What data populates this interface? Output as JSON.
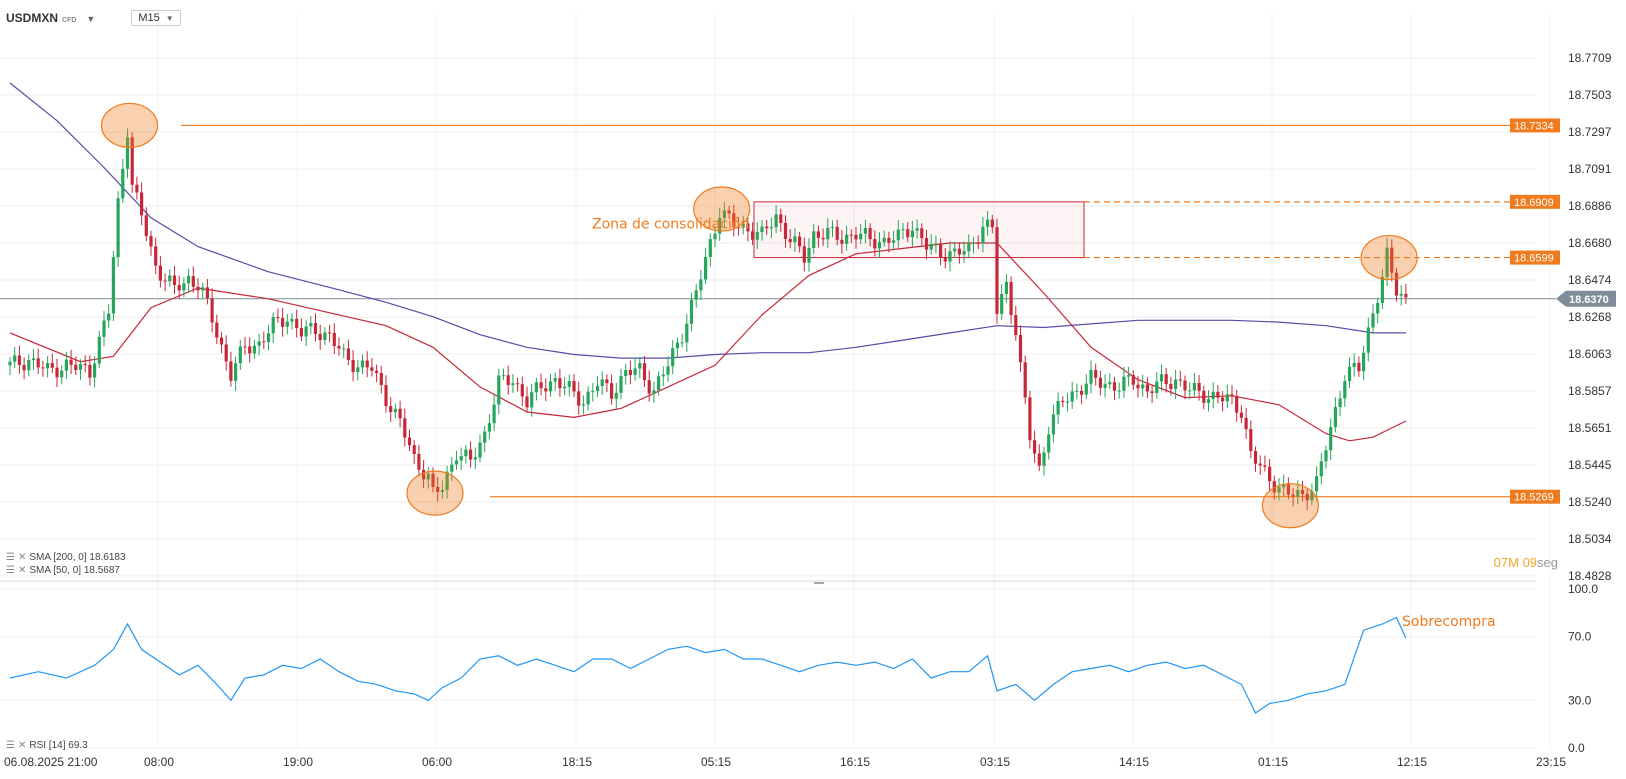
{
  "toolbar": {
    "symbol": "USDMXN",
    "instrument_type": "CFD",
    "timeframe": "M15"
  },
  "indicators": {
    "sma200_label": "SMA [200, 0] 18.6183",
    "sma50_label": "SMA [50, 0] 18.5687",
    "rsi_label": "RSI [14] 69.3"
  },
  "countdown": {
    "minutes": "07",
    "minutes_unit": "M",
    "seconds": "09",
    "seconds_unit": "seg"
  },
  "colors": {
    "bull": "#26a65b",
    "bear": "#c62839",
    "sma50": "#c62839",
    "sma200": "#5a4aa8",
    "rsi": "#2196f3",
    "annotation": "#f07b1e",
    "consolidation": "#c62839",
    "current_price_tag": "#7f8c9a",
    "countdown_min": "#f5a623",
    "countdown_sec": "#999999"
  },
  "annotations": {
    "consolidation_label": "Zona de consolidación",
    "overbought_label": "Sobrecompra"
  },
  "chart_data": {
    "type": "candlestick",
    "symbol": "USDMXN",
    "timeframe": "M15",
    "price_axis": {
      "ticks": [
        "18.7709",
        "18.7503",
        "18.7297",
        "18.7091",
        "18.6886",
        "18.6680",
        "18.6474",
        "18.6268",
        "18.6063",
        "18.5857",
        "18.5651",
        "18.5445",
        "18.5240",
        "18.5034",
        "18.4828"
      ],
      "range": [
        18.4828,
        18.7709
      ]
    },
    "time_axis": {
      "ticks": [
        "06.08.2025 21:00",
        "08:00",
        "19:00",
        "06:00",
        "18:15",
        "05:15",
        "16:15",
        "03:15",
        "14:15",
        "01:15",
        "12:15",
        "23:15"
      ]
    },
    "current_price": 18.637,
    "current_price_label": "18.6370",
    "horizontal_levels": [
      {
        "value": 18.7334,
        "label": "18.7334",
        "style": "solid"
      },
      {
        "value": 18.6909,
        "label": "18.6909",
        "style": "dashed"
      },
      {
        "value": 18.6599,
        "label": "18.6599",
        "style": "dashed"
      },
      {
        "value": 18.5269,
        "label": "18.5269",
        "style": "solid"
      }
    ],
    "consolidation_zone": {
      "top": 18.6909,
      "bottom": 18.6599
    },
    "close_path": [
      [
        0,
        18.6
      ],
      [
        4,
        18.603
      ],
      [
        8,
        18.597
      ],
      [
        12,
        18.6
      ],
      [
        17,
        18.597
      ],
      [
        21,
        18.63
      ],
      [
        23,
        18.69
      ],
      [
        25,
        18.732
      ],
      [
        26,
        18.7
      ],
      [
        28,
        18.683
      ],
      [
        31,
        18.655
      ],
      [
        35,
        18.642
      ],
      [
        38,
        18.648
      ],
      [
        40,
        18.645
      ],
      [
        41,
        18.64
      ],
      [
        44,
        18.618
      ],
      [
        47,
        18.595
      ],
      [
        50,
        18.61
      ],
      [
        53,
        18.612
      ],
      [
        56,
        18.622
      ],
      [
        59,
        18.627
      ],
      [
        62,
        18.618
      ],
      [
        65,
        18.62
      ],
      [
        68,
        18.616
      ],
      [
        71,
        18.605
      ],
      [
        74,
        18.6
      ],
      [
        77,
        18.598
      ],
      [
        80,
        18.582
      ],
      [
        83,
        18.568
      ],
      [
        86,
        18.548
      ],
      [
        89,
        18.538
      ],
      [
        90,
        18.528
      ],
      [
        92,
        18.532
      ],
      [
        95,
        18.552
      ],
      [
        98,
        18.546
      ],
      [
        101,
        18.562
      ],
      [
        104,
        18.59
      ],
      [
        107,
        18.592
      ],
      [
        110,
        18.58
      ],
      [
        113,
        18.588
      ],
      [
        116,
        18.592
      ],
      [
        119,
        18.586
      ],
      [
        122,
        18.58
      ],
      [
        125,
        18.59
      ],
      [
        128,
        18.585
      ],
      [
        131,
        18.596
      ],
      [
        134,
        18.597
      ],
      [
        137,
        18.586
      ],
      [
        140,
        18.6
      ],
      [
        143,
        18.618
      ],
      [
        146,
        18.64
      ],
      [
        149,
        18.668
      ],
      [
        151,
        18.686
      ],
      [
        154,
        18.678
      ],
      [
        157,
        18.676
      ],
      [
        160,
        18.672
      ],
      [
        163,
        18.683
      ],
      [
        166,
        18.67
      ],
      [
        169,
        18.66
      ],
      [
        171,
        18.673
      ],
      [
        174,
        18.673
      ],
      [
        177,
        18.671
      ],
      [
        180,
        18.673
      ],
      [
        183,
        18.67
      ],
      [
        186,
        18.669
      ],
      [
        189,
        18.671
      ],
      [
        192,
        18.678
      ],
      [
        195,
        18.666
      ],
      [
        198,
        18.663
      ],
      [
        201,
        18.662
      ],
      [
        204,
        18.664
      ],
      [
        207,
        18.678
      ],
      [
        209,
        18.676
      ],
      [
        210,
        18.63
      ],
      [
        212,
        18.645
      ],
      [
        214,
        18.62
      ],
      [
        215,
        18.598
      ],
      [
        217,
        18.56
      ],
      [
        219,
        18.542
      ],
      [
        221,
        18.566
      ],
      [
        224,
        18.58
      ],
      [
        227,
        18.586
      ],
      [
        230,
        18.592
      ],
      [
        233,
        18.59
      ],
      [
        236,
        18.588
      ],
      [
        239,
        18.592
      ],
      [
        242,
        18.586
      ],
      [
        245,
        18.59
      ],
      [
        248,
        18.592
      ],
      [
        251,
        18.586
      ],
      [
        254,
        18.584
      ],
      [
        257,
        18.582
      ],
      [
        260,
        18.58
      ],
      [
        262,
        18.575
      ],
      [
        264,
        18.55
      ],
      [
        267,
        18.54
      ],
      [
        270,
        18.532
      ],
      [
        272,
        18.528
      ],
      [
        275,
        18.528
      ],
      [
        278,
        18.534
      ],
      [
        281,
        18.565
      ],
      [
        284,
        18.595
      ],
      [
        287,
        18.598
      ],
      [
        290,
        18.63
      ],
      [
        292,
        18.648
      ],
      [
        293,
        18.66
      ],
      [
        295,
        18.642
      ],
      [
        297,
        18.637
      ]
    ],
    "sma50_path": [
      [
        0,
        18.618
      ],
      [
        15,
        18.602
      ],
      [
        22,
        18.605
      ],
      [
        30,
        18.632
      ],
      [
        40,
        18.643
      ],
      [
        55,
        18.637
      ],
      [
        70,
        18.628
      ],
      [
        80,
        18.622
      ],
      [
        90,
        18.61
      ],
      [
        100,
        18.588
      ],
      [
        110,
        18.574
      ],
      [
        120,
        18.571
      ],
      [
        130,
        18.576
      ],
      [
        140,
        18.588
      ],
      [
        150,
        18.6
      ],
      [
        160,
        18.628
      ],
      [
        170,
        18.65
      ],
      [
        180,
        18.662
      ],
      [
        190,
        18.665
      ],
      [
        200,
        18.668
      ],
      [
        210,
        18.668
      ],
      [
        220,
        18.64
      ],
      [
        230,
        18.61
      ],
      [
        240,
        18.592
      ],
      [
        250,
        18.582
      ],
      [
        260,
        18.583
      ],
      [
        270,
        18.578
      ],
      [
        280,
        18.562
      ],
      [
        285,
        18.558
      ],
      [
        290,
        18.56
      ],
      [
        297,
        18.569
      ]
    ],
    "sma200_path": [
      [
        0,
        18.757
      ],
      [
        10,
        18.736
      ],
      [
        20,
        18.71
      ],
      [
        30,
        18.682
      ],
      [
        40,
        18.666
      ],
      [
        55,
        18.652
      ],
      [
        70,
        18.642
      ],
      [
        80,
        18.635
      ],
      [
        90,
        18.627
      ],
      [
        100,
        18.617
      ],
      [
        110,
        18.61
      ],
      [
        120,
        18.606
      ],
      [
        130,
        18.604
      ],
      [
        140,
        18.604
      ],
      [
        150,
        18.606
      ],
      [
        160,
        18.607
      ],
      [
        170,
        18.607
      ],
      [
        180,
        18.61
      ],
      [
        190,
        18.614
      ],
      [
        200,
        18.618
      ],
      [
        210,
        18.622
      ],
      [
        220,
        18.621
      ],
      [
        230,
        18.623
      ],
      [
        240,
        18.625
      ],
      [
        250,
        18.625
      ],
      [
        260,
        18.625
      ],
      [
        270,
        18.624
      ],
      [
        280,
        18.622
      ],
      [
        290,
        18.618
      ],
      [
        297,
        18.618
      ]
    ],
    "rsi": {
      "axis_ticks": [
        "100.0",
        "70.0",
        "30.0",
        "0.0"
      ],
      "range": [
        0,
        100
      ],
      "path": [
        [
          0,
          44
        ],
        [
          6,
          48
        ],
        [
          12,
          44
        ],
        [
          18,
          52
        ],
        [
          22,
          62
        ],
        [
          25,
          78
        ],
        [
          28,
          62
        ],
        [
          32,
          54
        ],
        [
          36,
          46
        ],
        [
          40,
          52
        ],
        [
          44,
          40
        ],
        [
          47,
          30
        ],
        [
          50,
          44
        ],
        [
          54,
          46
        ],
        [
          58,
          52
        ],
        [
          62,
          50
        ],
        [
          66,
          56
        ],
        [
          70,
          48
        ],
        [
          74,
          42
        ],
        [
          78,
          40
        ],
        [
          82,
          36
        ],
        [
          86,
          34
        ],
        [
          89,
          30
        ],
        [
          92,
          38
        ],
        [
          96,
          44
        ],
        [
          100,
          56
        ],
        [
          104,
          58
        ],
        [
          108,
          52
        ],
        [
          112,
          56
        ],
        [
          116,
          52
        ],
        [
          120,
          48
        ],
        [
          124,
          56
        ],
        [
          128,
          56
        ],
        [
          132,
          50
        ],
        [
          136,
          56
        ],
        [
          140,
          62
        ],
        [
          144,
          64
        ],
        [
          148,
          60
        ],
        [
          152,
          62
        ],
        [
          156,
          56
        ],
        [
          160,
          56
        ],
        [
          164,
          52
        ],
        [
          168,
          48
        ],
        [
          172,
          52
        ],
        [
          176,
          54
        ],
        [
          180,
          52
        ],
        [
          184,
          54
        ],
        [
          188,
          50
        ],
        [
          192,
          56
        ],
        [
          196,
          44
        ],
        [
          200,
          48
        ],
        [
          204,
          48
        ],
        [
          208,
          58
        ],
        [
          210,
          36
        ],
        [
          214,
          40
        ],
        [
          218,
          30
        ],
        [
          222,
          40
        ],
        [
          226,
          48
        ],
        [
          230,
          50
        ],
        [
          234,
          52
        ],
        [
          238,
          48
        ],
        [
          242,
          52
        ],
        [
          246,
          54
        ],
        [
          250,
          50
        ],
        [
          254,
          52
        ],
        [
          258,
          46
        ],
        [
          262,
          40
        ],
        [
          265,
          22
        ],
        [
          268,
          28
        ],
        [
          272,
          30
        ],
        [
          276,
          34
        ],
        [
          280,
          36
        ],
        [
          284,
          40
        ],
        [
          288,
          74
        ],
        [
          292,
          78
        ],
        [
          295,
          82
        ],
        [
          297,
          69
        ]
      ]
    },
    "highlighted_extremes": [
      "swing-high-1",
      "swing-high-2",
      "swing-high-3",
      "swing-low-1",
      "swing-low-2"
    ]
  }
}
